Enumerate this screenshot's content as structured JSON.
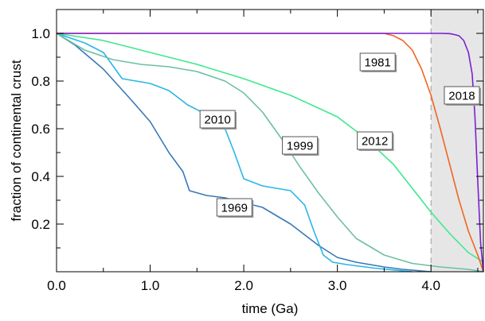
{
  "chart_data": {
    "type": "line",
    "xlabel": "time (Ga)",
    "ylabel": "fraction of continental crust",
    "xlim": [
      0,
      4.56
    ],
    "ylim": [
      0,
      1.1
    ],
    "x_ticks": [
      0,
      1,
      2,
      3,
      4
    ],
    "x_tick_labels": [
      "0.0",
      "1.0",
      "2.0",
      "3.0",
      "4.0"
    ],
    "y_ticks": [
      0.2,
      0.4,
      0.6,
      0.8,
      1.0
    ],
    "y_tick_labels": [
      "0.2",
      "0.4",
      "0.6",
      "0.8",
      "1.0"
    ],
    "grid": false,
    "shaded_region": {
      "x_start": 4.0,
      "x_end": 4.56,
      "color": "#e6e6e6"
    },
    "reference_line": {
      "x": 4.0,
      "style": "dashed"
    },
    "series": [
      {
        "name": "1969",
        "color": "#3a78b8",
        "x": [
          0,
          0.2,
          0.5,
          0.8,
          1.0,
          1.2,
          1.35,
          1.42,
          1.6,
          1.8,
          2.0,
          2.2,
          2.5,
          2.8,
          3.0,
          3.2,
          3.5,
          3.7,
          4.0
        ],
        "y": [
          1.0,
          0.95,
          0.85,
          0.72,
          0.63,
          0.5,
          0.42,
          0.34,
          0.32,
          0.31,
          0.29,
          0.27,
          0.2,
          0.11,
          0.06,
          0.04,
          0.02,
          0.01,
          0.0
        ]
      },
      {
        "name": "2010",
        "color": "#29b6e8",
        "x": [
          0,
          0.3,
          0.5,
          0.7,
          1.0,
          1.2,
          1.4,
          1.6,
          1.8,
          1.9,
          2.0,
          2.2,
          2.5,
          2.65,
          2.75,
          2.85,
          2.95,
          3.1,
          3.4,
          3.8
        ],
        "y": [
          1.0,
          0.96,
          0.92,
          0.81,
          0.79,
          0.76,
          0.7,
          0.66,
          0.6,
          0.5,
          0.39,
          0.36,
          0.34,
          0.28,
          0.17,
          0.07,
          0.04,
          0.03,
          0.015,
          0.0
        ]
      },
      {
        "name": "1999",
        "color": "#6dbfa4",
        "x": [
          0,
          0.3,
          0.6,
          0.9,
          1.2,
          1.5,
          1.8,
          2.0,
          2.2,
          2.4,
          2.6,
          2.8,
          3.0,
          3.2,
          3.5,
          3.8,
          4.1,
          4.4,
          4.56
        ],
        "y": [
          1.0,
          0.93,
          0.89,
          0.87,
          0.86,
          0.84,
          0.8,
          0.75,
          0.67,
          0.56,
          0.44,
          0.33,
          0.23,
          0.14,
          0.07,
          0.035,
          0.02,
          0.01,
          0.0
        ]
      },
      {
        "name": "2012",
        "color": "#3ee88e",
        "x": [
          0,
          0.5,
          1.0,
          1.5,
          2.0,
          2.5,
          3.0,
          3.3,
          3.6,
          3.8,
          4.0,
          4.2,
          4.4,
          4.56
        ],
        "y": [
          1.0,
          0.97,
          0.92,
          0.87,
          0.81,
          0.74,
          0.65,
          0.56,
          0.45,
          0.35,
          0.25,
          0.16,
          0.08,
          0.04
        ]
      },
      {
        "name": "1981",
        "color": "#f26522",
        "x": [
          0,
          3.5,
          3.6,
          3.7,
          3.8,
          3.9,
          4.0,
          4.1,
          4.2,
          4.3,
          4.4,
          4.5,
          4.56
        ],
        "y": [
          1.0,
          1.0,
          0.99,
          0.97,
          0.93,
          0.85,
          0.74,
          0.6,
          0.45,
          0.3,
          0.17,
          0.07,
          0.0
        ]
      },
      {
        "name": "2018",
        "color": "#7b1fd0",
        "x": [
          0,
          4.0,
          4.1,
          4.2,
          4.25,
          4.3,
          4.35,
          4.4,
          4.44,
          4.47,
          4.5,
          4.53,
          4.56
        ],
        "y": [
          1.0,
          1.0,
          1.0,
          0.999,
          0.995,
          0.99,
          0.97,
          0.92,
          0.83,
          0.65,
          0.38,
          0.12,
          0.0
        ]
      }
    ],
    "annotations": [
      {
        "text": "1969",
        "x": 1.9,
        "y": 0.27
      },
      {
        "text": "2010",
        "x": 1.72,
        "y": 0.64
      },
      {
        "text": "1999",
        "x": 2.6,
        "y": 0.53
      },
      {
        "text": "2012",
        "x": 3.4,
        "y": 0.55
      },
      {
        "text": "1981",
        "x": 3.43,
        "y": 0.88
      },
      {
        "text": "2018",
        "x": 4.33,
        "y": 0.74
      }
    ]
  }
}
